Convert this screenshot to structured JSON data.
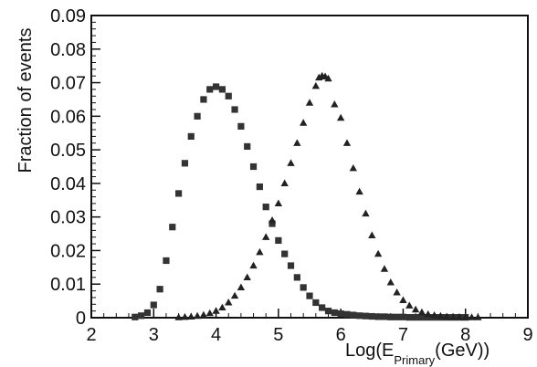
{
  "chart_data": {
    "type": "scatter",
    "ylabel": "Fraction of events",
    "xlabel_main": "Log(E",
    "xlabel_sub": "Primary",
    "xlabel_tail": "(GeV))",
    "xlim": [
      2,
      9
    ],
    "ylim": [
      0,
      0.09
    ],
    "xticks": [
      2,
      3,
      4,
      5,
      6,
      7,
      8,
      9
    ],
    "yticks": [
      0,
      0.01,
      0.02,
      0.03,
      0.04,
      0.05,
      0.06,
      0.07,
      0.08,
      0.09
    ],
    "xtick_labels": [
      "2",
      "3",
      "4",
      "5",
      "6",
      "7",
      "8",
      "9"
    ],
    "ytick_labels": [
      "0",
      "0.01",
      "0.02",
      "0.03",
      "0.04",
      "0.05",
      "0.06",
      "0.07",
      "0.08",
      "0.09"
    ],
    "grid": false,
    "legend": "none",
    "series": [
      {
        "marker": "square",
        "color": "#333333",
        "x": [
          2.7,
          2.8,
          2.9,
          3.0,
          3.1,
          3.2,
          3.3,
          3.4,
          3.5,
          3.6,
          3.7,
          3.8,
          3.9,
          4.0,
          4.1,
          4.2,
          4.3,
          4.4,
          4.5,
          4.6,
          4.7,
          4.8,
          4.9,
          5.0,
          5.1,
          5.2,
          5.3,
          5.4,
          5.5,
          5.6,
          5.7,
          5.8,
          5.9,
          6.0,
          6.1,
          6.2,
          6.3,
          6.4,
          6.5,
          6.6,
          6.7,
          6.8,
          6.9,
          7.0,
          7.1,
          7.2,
          7.3,
          7.4,
          7.5,
          7.6,
          7.7,
          7.8,
          7.9,
          8.0
        ],
        "y": [
          0.0002,
          0.0006,
          0.0015,
          0.0038,
          0.0085,
          0.017,
          0.027,
          0.037,
          0.046,
          0.054,
          0.06,
          0.065,
          0.068,
          0.0688,
          0.068,
          0.066,
          0.062,
          0.057,
          0.051,
          0.045,
          0.039,
          0.033,
          0.028,
          0.023,
          0.019,
          0.0155,
          0.012,
          0.009,
          0.0065,
          0.0045,
          0.003,
          0.002,
          0.0015,
          0.0012,
          0.001,
          0.0008,
          0.0006,
          0.0005,
          0.0004,
          0.0003,
          0.0003,
          0.0002,
          0.0002,
          0.0002,
          0.0001,
          0.0001,
          0.0001,
          0.0001,
          0.0001,
          0.0001,
          0.0001,
          0.0001,
          0.0001,
          0.0001
        ]
      },
      {
        "marker": "triangle",
        "color": "#222222",
        "x": [
          3.4,
          3.5,
          3.6,
          3.7,
          3.8,
          3.9,
          4.0,
          4.1,
          4.2,
          4.3,
          4.4,
          4.5,
          4.6,
          4.7,
          4.8,
          4.9,
          5.0,
          5.1,
          5.2,
          5.3,
          5.4,
          5.5,
          5.6,
          5.65,
          5.7,
          5.75,
          5.8,
          5.9,
          6.0,
          6.1,
          6.2,
          6.3,
          6.4,
          6.5,
          6.6,
          6.7,
          6.8,
          6.9,
          7.0,
          7.1,
          7.2,
          7.3,
          7.4,
          7.5,
          7.6,
          7.7,
          7.8,
          7.9,
          8.0,
          8.1,
          8.2
        ],
        "y": [
          0.0001,
          0.0002,
          0.0003,
          0.0005,
          0.0008,
          0.0013,
          0.002,
          0.003,
          0.0045,
          0.0065,
          0.009,
          0.012,
          0.0155,
          0.0195,
          0.024,
          0.029,
          0.034,
          0.04,
          0.046,
          0.052,
          0.058,
          0.064,
          0.069,
          0.0715,
          0.072,
          0.0718,
          0.0712,
          0.0635,
          0.0595,
          0.052,
          0.0445,
          0.0375,
          0.031,
          0.0245,
          0.019,
          0.0145,
          0.0105,
          0.0075,
          0.0052,
          0.0036,
          0.0024,
          0.0016,
          0.001,
          0.0007,
          0.0005,
          0.0003,
          0.0002,
          0.0002,
          0.0001,
          0.0001,
          0.0001
        ]
      }
    ]
  }
}
